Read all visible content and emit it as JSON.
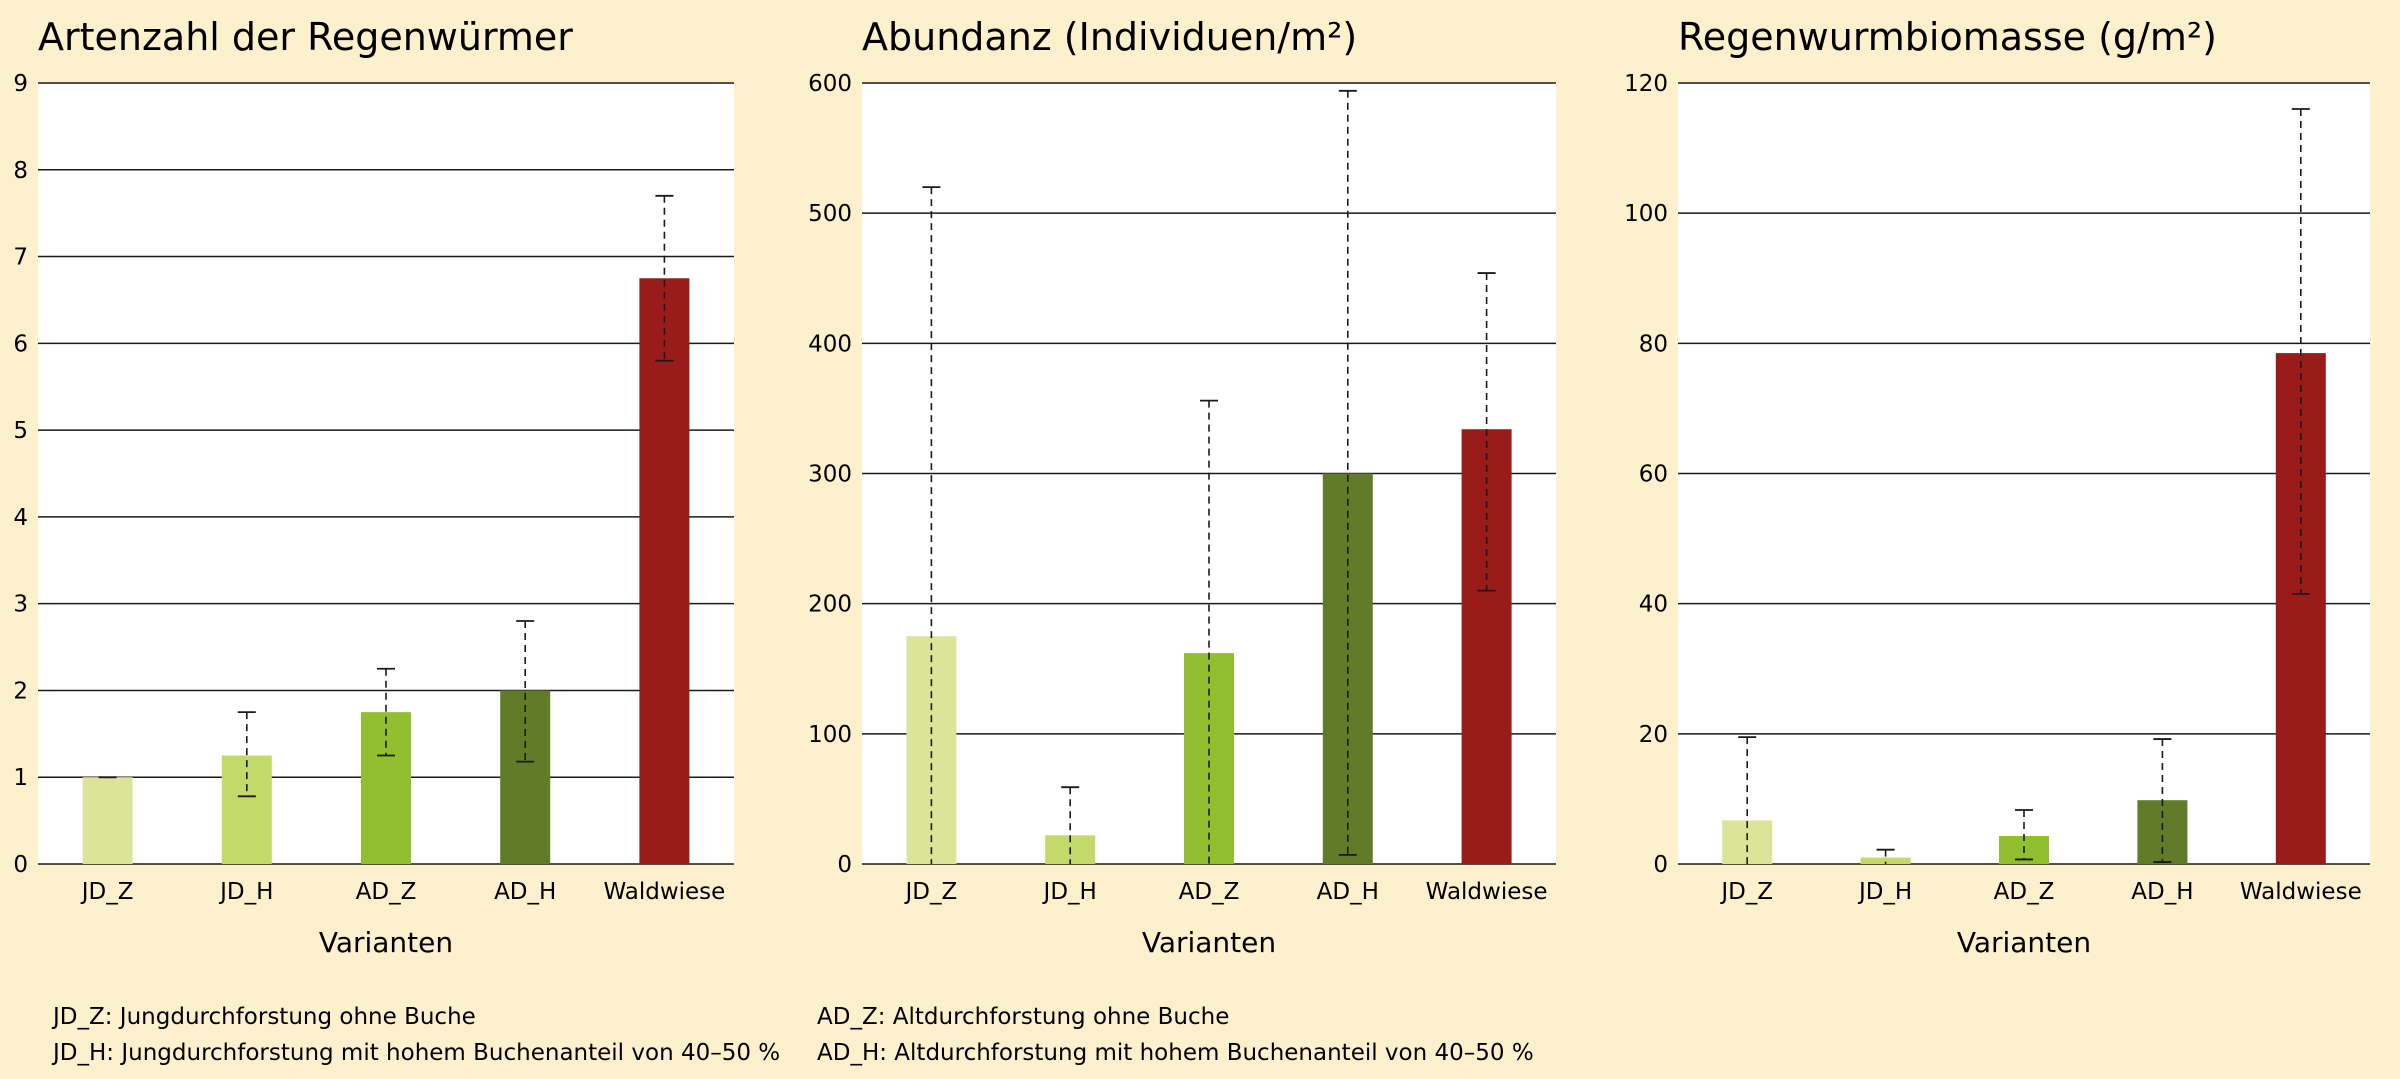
{
  "colors": {
    "background": "#fdf0cd",
    "plot_background": "#ffffff",
    "JD_Z": "#dce597",
    "JD_H": "#c5d86a",
    "AD_Z": "#91bf2f",
    "AD_H": "#607c28",
    "Waldwiese": "#991c1b",
    "gridline": "#1a1a1a"
  },
  "chart_data": [
    {
      "type": "bar",
      "title": "Artenzahl der Regenwürmer",
      "xlabel": "Varianten",
      "ylabel": "",
      "categories": [
        "JD_Z",
        "JD_H",
        "AD_Z",
        "AD_H",
        "Waldwiese"
      ],
      "values": [
        1,
        1.25,
        1.75,
        2,
        6.75
      ],
      "error_low": [
        1,
        0.78,
        1.25,
        1.18,
        5.8
      ],
      "error_high": [
        1,
        1.75,
        2.25,
        2.8,
        7.7
      ],
      "ylim": [
        0,
        9
      ],
      "yticks": [
        0,
        1,
        2,
        3,
        4,
        5,
        6,
        7,
        8,
        9
      ],
      "grid": true
    },
    {
      "type": "bar",
      "title": "Abundanz (Individuen/m²)",
      "xlabel": "Varianten",
      "ylabel": "",
      "categories": [
        "JD_Z",
        "JD_H",
        "AD_Z",
        "AD_H",
        "Waldwiese"
      ],
      "values": [
        175,
        22,
        162,
        300,
        334
      ],
      "error_low": [
        0,
        0,
        0,
        7,
        210
      ],
      "error_high": [
        520,
        59,
        356,
        594,
        454
      ],
      "ylim": [
        0,
        600
      ],
      "yticks": [
        0,
        100,
        200,
        300,
        400,
        500,
        600
      ],
      "grid": true
    },
    {
      "type": "bar",
      "title": "Regenwurmbiomasse (g/m²)",
      "xlabel": "Varianten",
      "ylabel": "",
      "categories": [
        "JD_Z",
        "JD_H",
        "AD_Z",
        "AD_H",
        "Waldwiese"
      ],
      "values": [
        6.7,
        1,
        4.3,
        9.8,
        78.5
      ],
      "error_low": [
        0,
        0,
        0.7,
        0.3,
        41.5
      ],
      "error_high": [
        19.5,
        2.2,
        8.3,
        19.2,
        116
      ],
      "ylim": [
        0,
        120
      ],
      "yticks": [
        0,
        20,
        40,
        60,
        80,
        100,
        120
      ],
      "grid": true
    }
  ],
  "legend": {
    "left": [
      "JD_Z: Jungdurchforstung ohne Buche",
      "JD_H: Jungdurchforstung mit hohem Buchenanteil von 40–50 %"
    ],
    "right": [
      "AD_Z: Altdurchforstung ohne Buche",
      "AD_H: Altdurchforstung mit hohem Buchenanteil von 40–50 %"
    ]
  }
}
